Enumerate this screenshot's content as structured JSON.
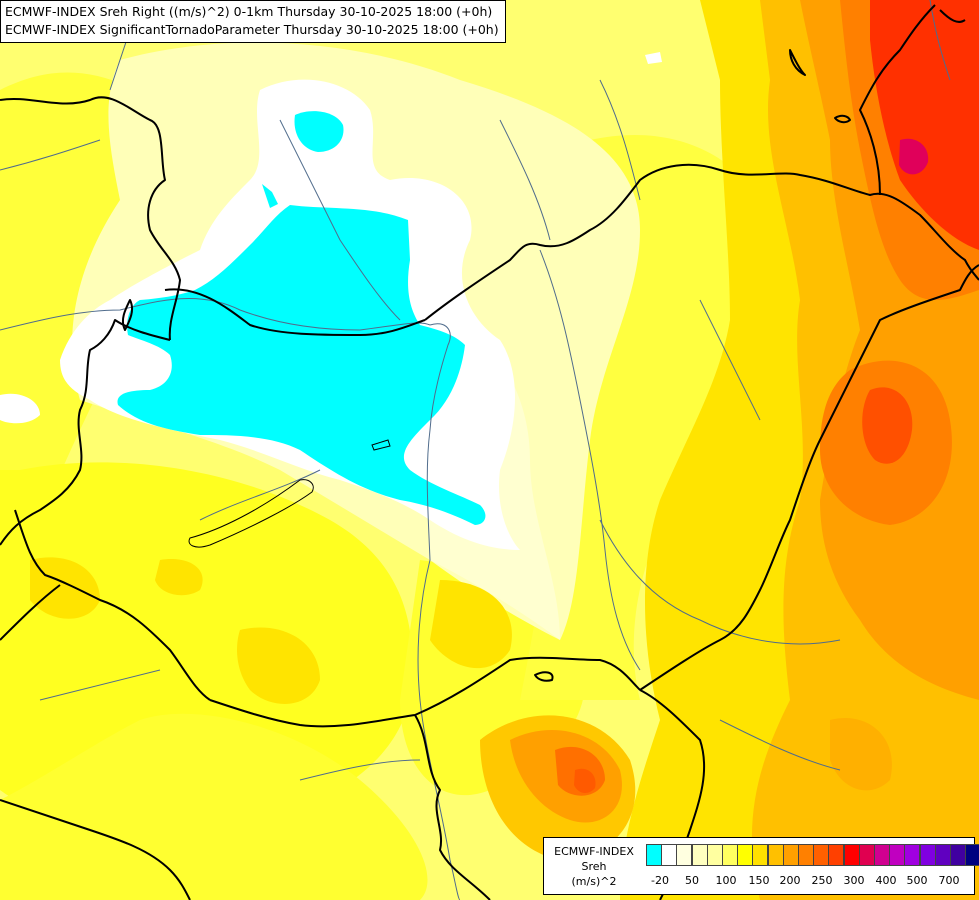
{
  "header": {
    "line1": "ECMWF-INDEX Sreh Right ((m/s)^2) 0-1km Thursday 30-10-2025 18:00 (+0h)",
    "line2": "ECMWF-INDEX SignificantTornadoParameter Thursday 30-10-2025 18:00 (+0h)"
  },
  "legend": {
    "title": "ECMWF-INDEX",
    "parameter": "Sreh",
    "unit": "(m/s)^2",
    "colors": [
      "#00ffff",
      "#ffffff",
      "#ffffe0",
      "#ffffc0",
      "#ffffa0",
      "#ffff60",
      "#ffff00",
      "#ffe000",
      "#ffc000",
      "#ffa000",
      "#ff8000",
      "#ff6000",
      "#ff4000",
      "#ff0000",
      "#e00050",
      "#d00090",
      "#c000c0",
      "#a000e0",
      "#8000e0",
      "#6000c0",
      "#4000a0",
      "#000080"
    ],
    "ticks": [
      "-20",
      "50",
      "100",
      "150",
      "200",
      "250",
      "300",
      "400",
      "500",
      "700"
    ]
  },
  "colors": {
    "cyan": "#00ffff",
    "white": "#ffffff",
    "pale": "#ffffc0",
    "light_yellow": "#ffff80",
    "yellow": "#ffff00",
    "gold": "#ffe000",
    "orange_light": "#ffc000",
    "orange": "#ffa000",
    "orange_dark": "#ff8000",
    "red_orange": "#ff5000",
    "red": "#ff2000",
    "magenta": "#e0005a",
    "border": "#000000",
    "river": "#506c8c"
  }
}
